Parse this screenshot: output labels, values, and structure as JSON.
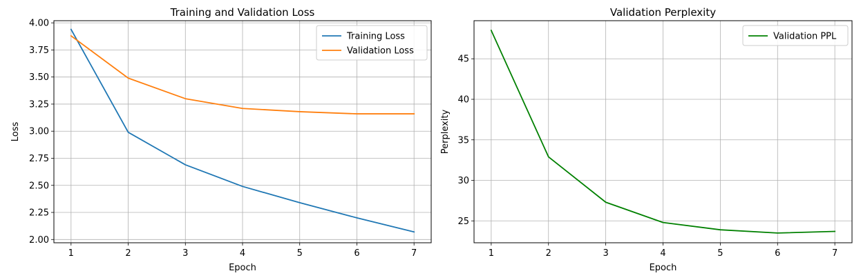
{
  "chart_data": [
    {
      "type": "line",
      "title": "Training and Validation Loss",
      "xlabel": "Epoch",
      "ylabel": "Loss",
      "x": [
        1,
        2,
        3,
        4,
        5,
        6,
        7
      ],
      "xticks": [
        "1",
        "2",
        "3",
        "4",
        "5",
        "6",
        "7"
      ],
      "yticks": [
        "2.00",
        "2.25",
        "2.50",
        "2.75",
        "3.00",
        "3.25",
        "3.50",
        "3.75",
        "4.00"
      ],
      "ylim": [
        1.97,
        4.02
      ],
      "xlim": [
        0.7,
        7.3
      ],
      "grid": true,
      "legend": "top-right",
      "series": [
        {
          "name": "Training Loss",
          "color": "#1f77b4",
          "values": [
            3.94,
            2.99,
            2.69,
            2.49,
            2.34,
            2.2,
            2.07
          ]
        },
        {
          "name": "Validation Loss",
          "color": "#ff7f0e",
          "values": [
            3.88,
            3.49,
            3.3,
            3.21,
            3.18,
            3.16,
            3.16
          ]
        }
      ]
    },
    {
      "type": "line",
      "title": "Validation Perplexity",
      "xlabel": "Epoch",
      "ylabel": "Perplexity",
      "x": [
        1,
        2,
        3,
        4,
        5,
        6,
        7
      ],
      "xticks": [
        "1",
        "2",
        "3",
        "4",
        "5",
        "6",
        "7"
      ],
      "yticks": [
        "25",
        "30",
        "35",
        "40",
        "45"
      ],
      "ylim": [
        22.3,
        49.7
      ],
      "xlim": [
        0.7,
        7.3
      ],
      "grid": true,
      "legend": "top-right",
      "series": [
        {
          "name": "Validation PPL",
          "color": "#008000",
          "values": [
            48.5,
            32.9,
            27.3,
            24.8,
            23.9,
            23.5,
            23.7
          ]
        }
      ]
    }
  ]
}
